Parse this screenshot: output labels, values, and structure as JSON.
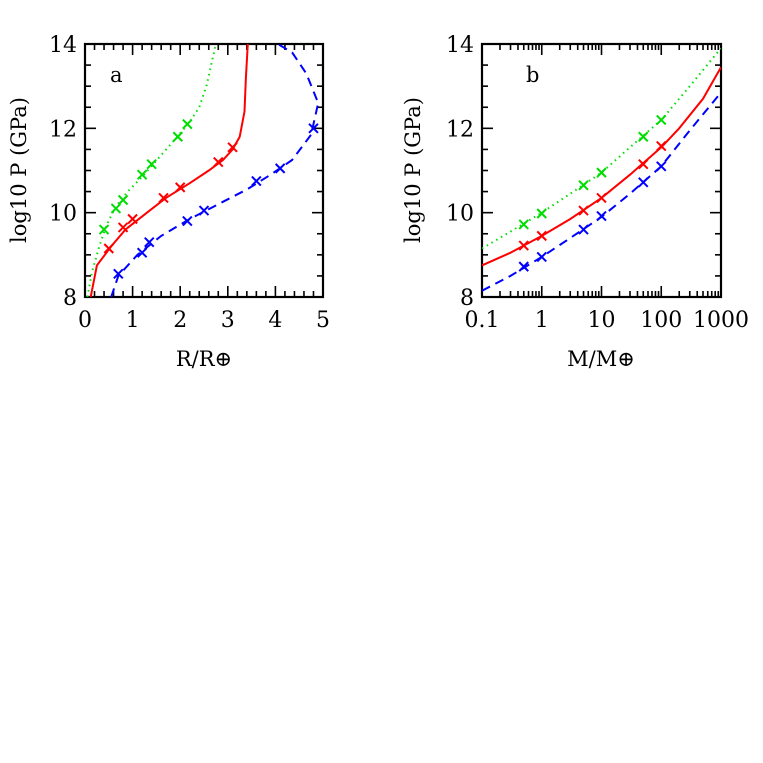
{
  "chart_data": [
    {
      "type": "line",
      "panel_label": "a",
      "xlabel": "R/R⊕",
      "ylabel": "log10 P (GPa)",
      "xlim": [
        0,
        5
      ],
      "ylim": [
        8,
        14
      ],
      "xscale": "linear",
      "x_ticks": [
        0,
        1,
        2,
        3,
        4,
        5
      ],
      "x_tick_labels": [
        "0",
        "1",
        "2",
        "3",
        "4",
        "5"
      ],
      "y_ticks": [
        8,
        10,
        12,
        14
      ],
      "y_tick_labels": [
        "8",
        "10",
        "12",
        "14"
      ],
      "grid": false,
      "legend": "none",
      "series": [
        {
          "color": "#00dd00",
          "dash": "dotted",
          "curve": [
            [
              0.05,
              8.0
            ],
            [
              0.15,
              8.6
            ],
            [
              0.3,
              9.2
            ],
            [
              0.45,
              9.7
            ],
            [
              0.65,
              10.15
            ],
            [
              0.9,
              10.5
            ],
            [
              1.2,
              10.85
            ],
            [
              1.55,
              11.3
            ],
            [
              1.9,
              11.75
            ],
            [
              2.2,
              12.15
            ],
            [
              2.4,
              12.5
            ],
            [
              2.55,
              13.0
            ],
            [
              2.65,
              13.5
            ],
            [
              2.75,
              14.0
            ]
          ],
          "markers": [
            [
              0.4,
              9.6
            ],
            [
              0.65,
              10.1
            ],
            [
              0.8,
              10.3
            ],
            [
              1.2,
              10.9
            ],
            [
              1.4,
              11.15
            ],
            [
              1.95,
              11.8
            ],
            [
              2.15,
              12.1
            ]
          ]
        },
        {
          "color": "#ff0000",
          "dash": "solid",
          "curve": [
            [
              0.12,
              8.0
            ],
            [
              0.25,
              8.75
            ],
            [
              0.55,
              9.2
            ],
            [
              0.85,
              9.6
            ],
            [
              1.3,
              10.0
            ],
            [
              1.7,
              10.35
            ],
            [
              2.2,
              10.7
            ],
            [
              2.6,
              11.0
            ],
            [
              2.9,
              11.25
            ],
            [
              3.1,
              11.5
            ],
            [
              3.25,
              11.8
            ],
            [
              3.35,
              12.4
            ],
            [
              3.38,
              13.2
            ],
            [
              3.42,
              14.0
            ]
          ],
          "markers": [
            [
              0.5,
              9.15
            ],
            [
              0.8,
              9.65
            ],
            [
              1.0,
              9.85
            ],
            [
              1.65,
              10.35
            ],
            [
              2.0,
              10.6
            ],
            [
              2.8,
              11.2
            ],
            [
              3.1,
              11.55
            ]
          ]
        },
        {
          "color": "#0000ff",
          "dash": "dashed",
          "curve": [
            [
              0.55,
              8.0
            ],
            [
              0.7,
              8.5
            ],
            [
              1.1,
              9.0
            ],
            [
              1.6,
              9.45
            ],
            [
              2.2,
              9.85
            ],
            [
              2.8,
              10.2
            ],
            [
              3.4,
              10.55
            ],
            [
              3.9,
              10.9
            ],
            [
              4.35,
              11.25
            ],
            [
              4.75,
              11.85
            ],
            [
              4.9,
              12.6
            ],
            [
              4.65,
              13.3
            ],
            [
              4.35,
              13.8
            ],
            [
              4.05,
              14.0
            ]
          ],
          "markers": [
            [
              0.7,
              8.55
            ],
            [
              1.2,
              9.05
            ],
            [
              1.35,
              9.3
            ],
            [
              2.15,
              9.8
            ],
            [
              2.5,
              10.05
            ],
            [
              3.6,
              10.75
            ],
            [
              4.1,
              11.05
            ],
            [
              4.8,
              12.0
            ]
          ]
        }
      ]
    },
    {
      "type": "line",
      "panel_label": "b",
      "xlabel": "M/M⊕",
      "ylabel": "log10 P (GPa)",
      "xlim": [
        0.1,
        1000
      ],
      "ylim": [
        8,
        14
      ],
      "xscale": "log",
      "x_ticks": [
        0.1,
        1,
        10,
        100,
        1000
      ],
      "x_tick_labels": [
        "0.1",
        "1",
        "10",
        "100",
        "1000"
      ],
      "y_ticks": [
        8,
        10,
        12,
        14
      ],
      "y_tick_labels": [
        "8",
        "10",
        "12",
        "14"
      ],
      "grid": false,
      "legend": "none",
      "series": [
        {
          "color": "#00dd00",
          "dash": "dotted",
          "curve": [
            [
              0.1,
              9.15
            ],
            [
              0.3,
              9.55
            ],
            [
              1,
              10.0
            ],
            [
              3,
              10.45
            ],
            [
              10,
              10.95
            ],
            [
              30,
              11.55
            ],
            [
              100,
              12.2
            ],
            [
              300,
              13.0
            ],
            [
              1000,
              13.9
            ]
          ],
          "markers": [
            [
              0.5,
              9.72
            ],
            [
              1,
              9.98
            ],
            [
              5,
              10.65
            ],
            [
              10,
              10.95
            ],
            [
              50,
              11.8
            ],
            [
              100,
              12.2
            ]
          ]
        },
        {
          "color": "#ff0000",
          "dash": "solid",
          "curve": [
            [
              0.1,
              8.75
            ],
            [
              0.3,
              9.05
            ],
            [
              1,
              9.45
            ],
            [
              3,
              9.85
            ],
            [
              10,
              10.35
            ],
            [
              30,
              10.9
            ],
            [
              100,
              11.55
            ],
            [
              200,
              12.0
            ],
            [
              500,
              12.7
            ],
            [
              1000,
              13.45
            ]
          ],
          "markers": [
            [
              0.5,
              9.22
            ],
            [
              1,
              9.45
            ],
            [
              5,
              10.05
            ],
            [
              10,
              10.35
            ],
            [
              50,
              11.15
            ],
            [
              100,
              11.58
            ]
          ]
        },
        {
          "color": "#0000ff",
          "dash": "dashed",
          "curve": [
            [
              0.1,
              8.15
            ],
            [
              0.3,
              8.5
            ],
            [
              1,
              8.95
            ],
            [
              3,
              9.4
            ],
            [
              10,
              9.9
            ],
            [
              30,
              10.45
            ],
            [
              100,
              11.1
            ],
            [
              300,
              11.95
            ],
            [
              1000,
              12.85
            ]
          ],
          "markers": [
            [
              0.5,
              8.72
            ],
            [
              1,
              8.95
            ],
            [
              5,
              9.6
            ],
            [
              10,
              9.92
            ],
            [
              50,
              10.72
            ],
            [
              100,
              11.1
            ]
          ]
        }
      ]
    }
  ]
}
